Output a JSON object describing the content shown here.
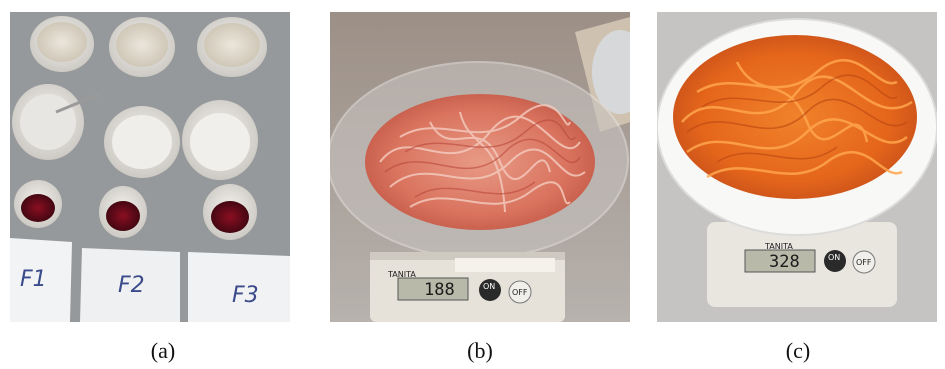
{
  "captions": {
    "a": "(a)",
    "b": "(b)",
    "c": "(c)"
  },
  "panel_a": {
    "labels": [
      "F1",
      "F2",
      "F3"
    ]
  },
  "panel_b": {
    "scale_brand": "TANITA",
    "scale_reading": "188",
    "button_on": "ON",
    "button_off": "OFF"
  },
  "panel_c": {
    "scale_brand": "TANITA",
    "scale_reading": "328",
    "button_on": "ON",
    "button_off": "OFF"
  }
}
